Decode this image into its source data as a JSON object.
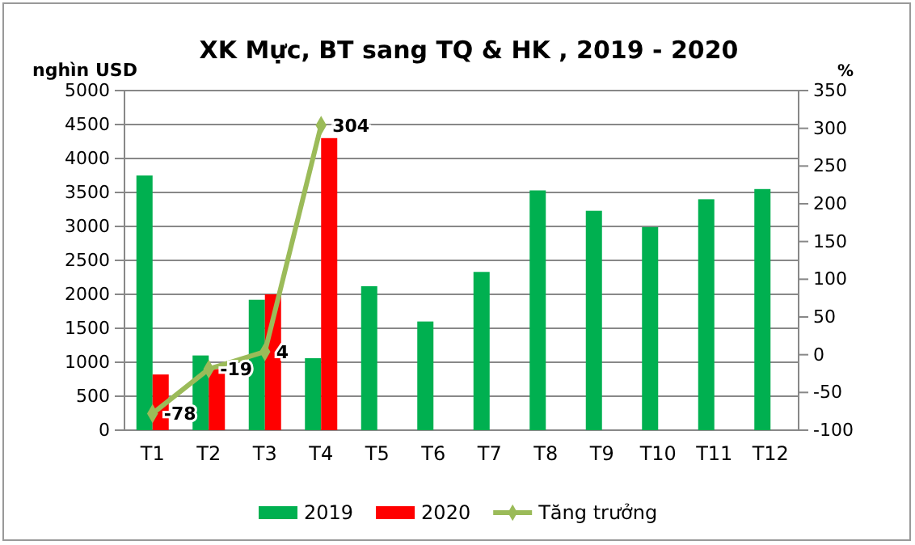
{
  "chart_data": {
    "type": "bar",
    "title": "XK Mực, BT sang TQ & HK , 2019 - 2020",
    "ylabel": "nghìn USD",
    "y2label": "%",
    "categories": [
      "T1",
      "T2",
      "T3",
      "T4",
      "T5",
      "T6",
      "T7",
      "T8",
      "T9",
      "T10",
      "T11",
      "T12"
    ],
    "series": [
      {
        "name": "2019",
        "color": "#00b050",
        "values": [
          3750,
          1100,
          1920,
          1060,
          2120,
          1600,
          2330,
          3530,
          3230,
          2990,
          3400,
          3550
        ]
      },
      {
        "name": "2020",
        "color": "#ff0000",
        "values": [
          820,
          900,
          2000,
          4300,
          null,
          null,
          null,
          null,
          null,
          null,
          null,
          null
        ]
      },
      {
        "name": "Tăng trưởng",
        "type": "line",
        "axis": "y2",
        "color": "#9bbb59",
        "marker": "diamond",
        "values": [
          -78,
          -19,
          4,
          304,
          null,
          null,
          null,
          null,
          null,
          null,
          null,
          null
        ],
        "value_labels": [
          "-78",
          "-19",
          "4",
          "304",
          null,
          null,
          null,
          null,
          null,
          null,
          null,
          null
        ]
      }
    ],
    "ylim": [
      0,
      5000
    ],
    "yticks": [
      0,
      500,
      1000,
      1500,
      2000,
      2500,
      3000,
      3500,
      4000,
      4500,
      5000
    ],
    "y2lim": [
      -100,
      350
    ],
    "y2ticks": [
      -100,
      -50,
      0,
      50,
      100,
      150,
      200,
      250,
      300,
      350
    ],
    "grid": "y",
    "legend": "bottom"
  }
}
